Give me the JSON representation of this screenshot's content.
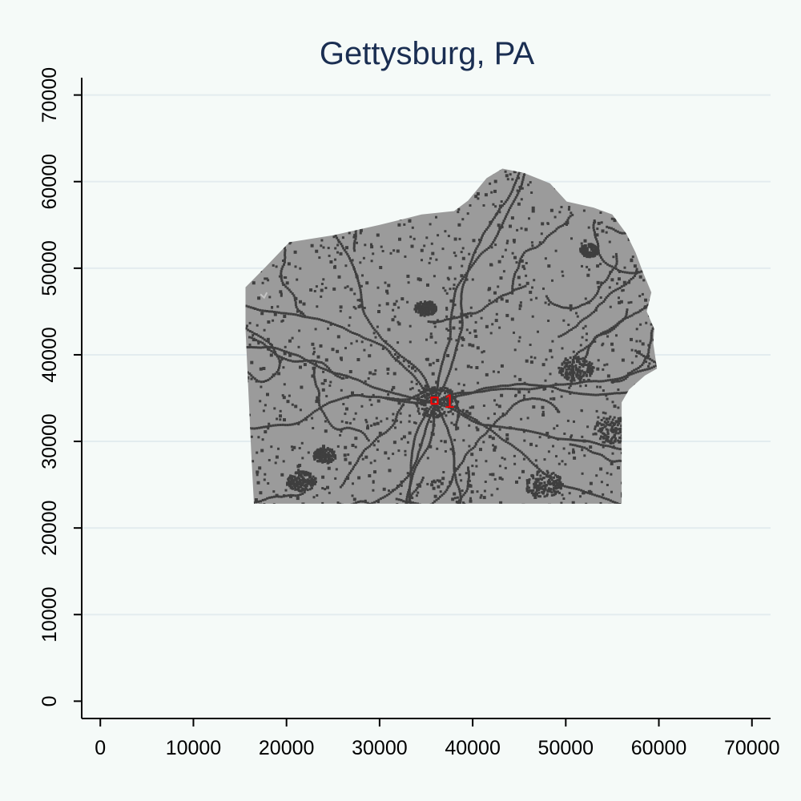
{
  "title": "Gettysburg, PA",
  "colors": {
    "background": "#f5faf8",
    "gridline": "#e3ecef",
    "axis": "#000000",
    "title": "#1a2e52",
    "region_fill": "#9b9b9b",
    "road_pixels": "#3f3f3f",
    "marker": "#ff0000"
  },
  "chart_data": {
    "type": "raster_map",
    "title": "Gettysburg, PA",
    "xlabel": "",
    "ylabel": "",
    "xlim": [
      -2000,
      72000
    ],
    "ylim": [
      -2000,
      72000
    ],
    "x_ticks": [
      0,
      10000,
      20000,
      30000,
      40000,
      50000,
      60000,
      70000
    ],
    "y_ticks": [
      0,
      10000,
      20000,
      30000,
      40000,
      50000,
      60000,
      70000
    ],
    "grid": "horizontal",
    "region_outline": [
      [
        15600,
        47800
      ],
      [
        17800,
        50200
      ],
      [
        20300,
        53000
      ],
      [
        25000,
        53800
      ],
      [
        30000,
        55000
      ],
      [
        34500,
        56200
      ],
      [
        38000,
        56600
      ],
      [
        39500,
        57800
      ],
      [
        41500,
        60400
      ],
      [
        43200,
        61500
      ],
      [
        45500,
        61000
      ],
      [
        48300,
        59800
      ],
      [
        50100,
        57700
      ],
      [
        53000,
        57000
      ],
      [
        55000,
        56200
      ],
      [
        56500,
        54000
      ],
      [
        57500,
        51800
      ],
      [
        58300,
        49500
      ],
      [
        59200,
        47200
      ],
      [
        58700,
        45000
      ],
      [
        59500,
        43000
      ],
      [
        59400,
        41300
      ],
      [
        59800,
        38400
      ],
      [
        58500,
        37600
      ],
      [
        56800,
        36000
      ],
      [
        56000,
        34500
      ],
      [
        56000,
        22800
      ],
      [
        16500,
        22800
      ],
      [
        16200,
        29000
      ],
      [
        15900,
        36000
      ],
      [
        15600,
        43000
      ]
    ],
    "marker": {
      "label": "1",
      "x": 35900,
      "y": 34700
    }
  }
}
